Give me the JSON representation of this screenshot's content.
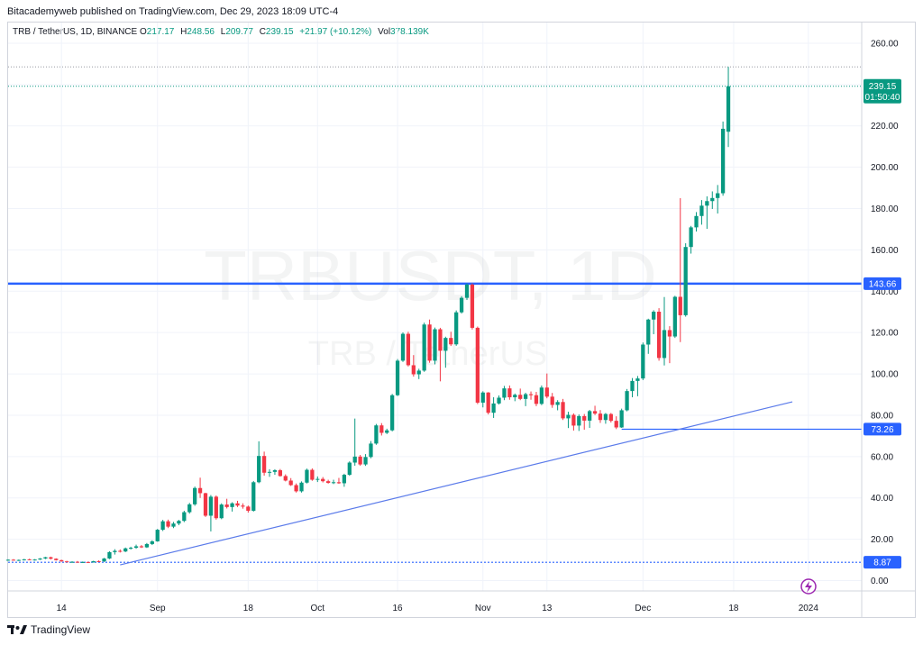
{
  "header": {
    "publisher": "Bitacademyweb published on TradingView.com, Dec 29, 2023 18:09 UTC-4"
  },
  "legend": {
    "symbol": "TRB / TetherUS, 1D, BINANCE",
    "o_label": "O",
    "o": "217.17",
    "h_label": "H",
    "h": "248.56",
    "l_label": "L",
    "l": "209.77",
    "c_label": "C",
    "c": "239.15",
    "change": "+21.97 (+10.12%)",
    "vol_label": "Vol",
    "vol": "378.139K"
  },
  "watermark": {
    "line1": "TRBUSDT, 1D",
    "line2": "TRB / TetherUS"
  },
  "footer": {
    "brand": "TradingView"
  },
  "colors": {
    "up": "#089981",
    "down": "#f23645",
    "level": "#2962ff",
    "trend": "#5b7bea",
    "grid": "#f0f3fa",
    "dark_badge": "#131722"
  },
  "chart_data": {
    "type": "candlestick",
    "title": "TRBUSDT, 1D",
    "ylim": [
      -5,
      270
    ],
    "y_ticks": [
      0,
      20,
      40,
      60,
      80,
      100,
      120,
      140,
      160,
      180,
      200,
      220,
      240,
      260
    ],
    "y_tick_labels": [
      "0.00",
      "20.00",
      "40.00",
      "60.00",
      "80.00",
      "100.00",
      "120.00",
      "140.00",
      "160.00",
      "180.00",
      "200.00",
      "220.00",
      "240.00",
      "260.00"
    ],
    "x_ticks": [
      {
        "date": "2023-08-14",
        "label": "14"
      },
      {
        "date": "2023-09-01",
        "label": "Sep"
      },
      {
        "date": "2023-09-18",
        "label": "18"
      },
      {
        "date": "2023-10-01",
        "label": "Oct"
      },
      {
        "date": "2023-10-16",
        "label": "16"
      },
      {
        "date": "2023-11-01",
        "label": "Nov"
      },
      {
        "date": "2023-11-13",
        "label": "13"
      },
      {
        "date": "2023-12-01",
        "label": "Dec"
      },
      {
        "date": "2023-12-18",
        "label": "18"
      },
      {
        "date": "2024-01-01",
        "label": "2024"
      }
    ],
    "x_range": [
      "2023-08-04",
      "2024-01-11"
    ],
    "series_start_date": "2023-08-04",
    "ohlc": [
      [
        10,
        10.3,
        9.6,
        10.1
      ],
      [
        10.1,
        10.4,
        9.8,
        9.9
      ],
      [
        9.9,
        10.2,
        9.5,
        10
      ],
      [
        10,
        10.5,
        9.7,
        10.3
      ],
      [
        10.3,
        10.6,
        9.9,
        10
      ],
      [
        10,
        10.4,
        9.7,
        10.2
      ],
      [
        10.2,
        10.9,
        10,
        10.7
      ],
      [
        10.7,
        11.5,
        10.4,
        11.3
      ],
      [
        11.3,
        11.6,
        10.2,
        10.6
      ],
      [
        10.6,
        10.8,
        9.7,
        9.9
      ],
      [
        9.9,
        10.1,
        9.1,
        9.3
      ],
      [
        9.3,
        9.6,
        8.8,
        9
      ],
      [
        9,
        9.4,
        8.6,
        9.1
      ],
      [
        9.1,
        9.5,
        8.7,
        8.9
      ],
      [
        8.9,
        9.3,
        8.5,
        9
      ],
      [
        9,
        9.2,
        8.5,
        8.8
      ],
      [
        8.8,
        9.6,
        8.7,
        9.4
      ],
      [
        9.4,
        9.8,
        9,
        9.3
      ],
      [
        9.3,
        11,
        9,
        10.7
      ],
      [
        10.7,
        14.2,
        10.4,
        13.8
      ],
      [
        13.8,
        15.2,
        12.6,
        14.4
      ],
      [
        14.4,
        15.1,
        13.6,
        14.1
      ],
      [
        14.1,
        16,
        13.8,
        15.6
      ],
      [
        15.6,
        16.4,
        15,
        15.9
      ],
      [
        15.9,
        17.4,
        15.4,
        16.6
      ],
      [
        16.6,
        17.2,
        15.8,
        16.1
      ],
      [
        16.1,
        18.2,
        15.8,
        17.7
      ],
      [
        17.7,
        19.5,
        17.2,
        19
      ],
      [
        19,
        25,
        18.8,
        24.6
      ],
      [
        24.6,
        29.4,
        24,
        28.7
      ],
      [
        28.7,
        29.5,
        25.4,
        26.1
      ],
      [
        26.1,
        28.4,
        25.4,
        27.6
      ],
      [
        27.6,
        29.4,
        26.8,
        28.9
      ],
      [
        28.9,
        33.8,
        28.3,
        33.1
      ],
      [
        33.1,
        37.6,
        32.4,
        36.9
      ],
      [
        36.9,
        45.5,
        36.2,
        44.8
      ],
      [
        44.8,
        49.8,
        40,
        42.3
      ],
      [
        42.3,
        42.5,
        30.8,
        31.4
      ],
      [
        31.4,
        41.4,
        23.8,
        40.6
      ],
      [
        40.6,
        41.2,
        29.5,
        30.2
      ],
      [
        30.2,
        37.4,
        29.7,
        36.8
      ],
      [
        36.8,
        39.6,
        34.9,
        35.6
      ],
      [
        35.6,
        37.9,
        33.4,
        37.4
      ],
      [
        37.4,
        38.6,
        35.6,
        36.3
      ],
      [
        36.3,
        37.4,
        34.8,
        35.8
      ],
      [
        35.8,
        36.3,
        32.9,
        33.8
      ],
      [
        33.8,
        48.2,
        33.4,
        47.6
      ],
      [
        47.6,
        67.4,
        47.1,
        60.3
      ],
      [
        60.3,
        62.4,
        50.8,
        52.2
      ],
      [
        52.2,
        53.9,
        50.2,
        52.6
      ],
      [
        52.6,
        53.9,
        51.2,
        53.4
      ],
      [
        53.4,
        54,
        50.3,
        50.6
      ],
      [
        50.6,
        51.4,
        48,
        48.4
      ],
      [
        48.4,
        49.6,
        45.8,
        46.2
      ],
      [
        46.2,
        47,
        42.6,
        43.2
      ],
      [
        43.2,
        48,
        42.6,
        47.4
      ],
      [
        47.4,
        54.2,
        47,
        53.6
      ],
      [
        53.6,
        54.3,
        48.3,
        48.8
      ],
      [
        48.8,
        50.4,
        47.7,
        49.2
      ],
      [
        49.2,
        50.1,
        47.5,
        48.1
      ],
      [
        48.1,
        48.8,
        46.9,
        47.3
      ],
      [
        47.3,
        48.8,
        46.7,
        47.6
      ],
      [
        47.6,
        49.7,
        46.8,
        47.1
      ],
      [
        47.1,
        51.7,
        45.4,
        51.2
      ],
      [
        51.2,
        57.7,
        50.7,
        57.1
      ],
      [
        57.1,
        78.4,
        55.6,
        60
      ],
      [
        60,
        60.8,
        55.6,
        56.2
      ],
      [
        56.2,
        61.2,
        55.5,
        59.8
      ],
      [
        59.8,
        67.5,
        59.2,
        66.3
      ],
      [
        66.3,
        75.8,
        65.7,
        75.1
      ],
      [
        75.1,
        76.2,
        70.2,
        71.5
      ],
      [
        71.5,
        73.5,
        70.9,
        72.7
      ],
      [
        72.7,
        90.3,
        72.2,
        89.7
      ],
      [
        89.7,
        107.2,
        89.3,
        106.4
      ],
      [
        106.4,
        120.1,
        105.8,
        119.4
      ],
      [
        119.4,
        120.4,
        103.6,
        104.2
      ],
      [
        104.2,
        109.1,
        98.7,
        99.8
      ],
      [
        99.8,
        102.5,
        97.5,
        101.6
      ],
      [
        101.6,
        124.8,
        101,
        123.9
      ],
      [
        123.9,
        126.3,
        105.4,
        106.4
      ],
      [
        106.4,
        122.4,
        104.6,
        121.6
      ],
      [
        121.6,
        122.3,
        96.4,
        111.2
      ],
      [
        111.2,
        118,
        103,
        117.4
      ],
      [
        117.4,
        120.4,
        113.5,
        114.3
      ],
      [
        114.3,
        130.7,
        113.6,
        129.8
      ],
      [
        129.8,
        137.6,
        129.2,
        136.8
      ],
      [
        136.8,
        143.8,
        135.8,
        143.2
      ],
      [
        143.2,
        143.8,
        121.5,
        122.3
      ],
      [
        122.3,
        122.9,
        85.4,
        86.1
      ],
      [
        86.1,
        91.6,
        83.8,
        91
      ],
      [
        91,
        91.2,
        80.4,
        81.2
      ],
      [
        81.2,
        88.7,
        78.7,
        85.7
      ],
      [
        85.7,
        89.6,
        85.2,
        88.5
      ],
      [
        88.5,
        94.2,
        87.3,
        93
      ],
      [
        93,
        94.4,
        87.5,
        88.7
      ],
      [
        88.7,
        90.5,
        86.8,
        89.9
      ],
      [
        89.9,
        92.9,
        87.3,
        87.9
      ],
      [
        87.9,
        90.9,
        84.4,
        90.2
      ],
      [
        90.2,
        91.5,
        87.5,
        89.7
      ],
      [
        89.7,
        91.3,
        84.4,
        85.5
      ],
      [
        85.5,
        94.4,
        84.9,
        93.4
      ],
      [
        93.4,
        100.2,
        88.2,
        89
      ],
      [
        89,
        90.8,
        83.6,
        85
      ],
      [
        85,
        87.3,
        82.4,
        86.4
      ],
      [
        86.4,
        87.9,
        77.7,
        78.5
      ],
      [
        78.5,
        81.7,
        73.8,
        80.2
      ],
      [
        80.2,
        80.9,
        72.6,
        75
      ],
      [
        75,
        80.4,
        72.4,
        79.6
      ],
      [
        79.6,
        80.6,
        73,
        77.4
      ],
      [
        77.4,
        82.6,
        73.9,
        82
      ],
      [
        82,
        84.6,
        80.1,
        80.8
      ],
      [
        80.8,
        82.5,
        76.3,
        77.7
      ],
      [
        77.7,
        81.1,
        75.9,
        80.6
      ],
      [
        80.6,
        81.1,
        76.5,
        77.3
      ],
      [
        77.3,
        79.5,
        73.3,
        74.1
      ],
      [
        74.1,
        83.2,
        73.9,
        82.4
      ],
      [
        82.4,
        92.7,
        81.9,
        91.7
      ],
      [
        91.7,
        98,
        88.7,
        96.6
      ],
      [
        96.6,
        99,
        89.2,
        97.8
      ],
      [
        97.8,
        115.2,
        97,
        114.2
      ],
      [
        114.2,
        126.7,
        109.7,
        126.3
      ],
      [
        126.3,
        130.8,
        119.2,
        130.1
      ],
      [
        130.1,
        131.8,
        106.4,
        107.7
      ],
      [
        107.7,
        137.2,
        104.1,
        121.2
      ],
      [
        121.2,
        123.1,
        105.2,
        118.1
      ],
      [
        118.1,
        137.8,
        117.4,
        137.3
      ],
      [
        137.3,
        185,
        115.4,
        128.4
      ],
      [
        128.4,
        163.2,
        127.7,
        161.4
      ],
      [
        161.4,
        171.6,
        158.2,
        170.9
      ],
      [
        170.9,
        178.3,
        168.9,
        176.4
      ],
      [
        176.4,
        184.1,
        172.2,
        181.4
      ],
      [
        181.4,
        185.9,
        170.2,
        183.6
      ],
      [
        183.6,
        188.3,
        179.8,
        185.1
      ],
      [
        185.1,
        191.4,
        177.6,
        187.4
      ],
      [
        187.4,
        222.1,
        186.2,
        218.6
      ],
      [
        217.17,
        248.56,
        209.77,
        239.15
      ]
    ],
    "horizontal_levels": [
      {
        "value": 143.66,
        "label": "143.66"
      },
      {
        "value": 73.26,
        "label": "73.26"
      },
      {
        "value": 8.87,
        "label": "8.87"
      },
      {
        "value": 248.56,
        "label": ""
      }
    ],
    "trendline": {
      "from": {
        "date": "2023-08-25",
        "value": 7.6
      },
      "to": {
        "date": "2023-12-29",
        "value": 86.5
      }
    },
    "last_price": {
      "value": 239.15,
      "label": "239.15",
      "countdown": "01:50:40"
    }
  }
}
